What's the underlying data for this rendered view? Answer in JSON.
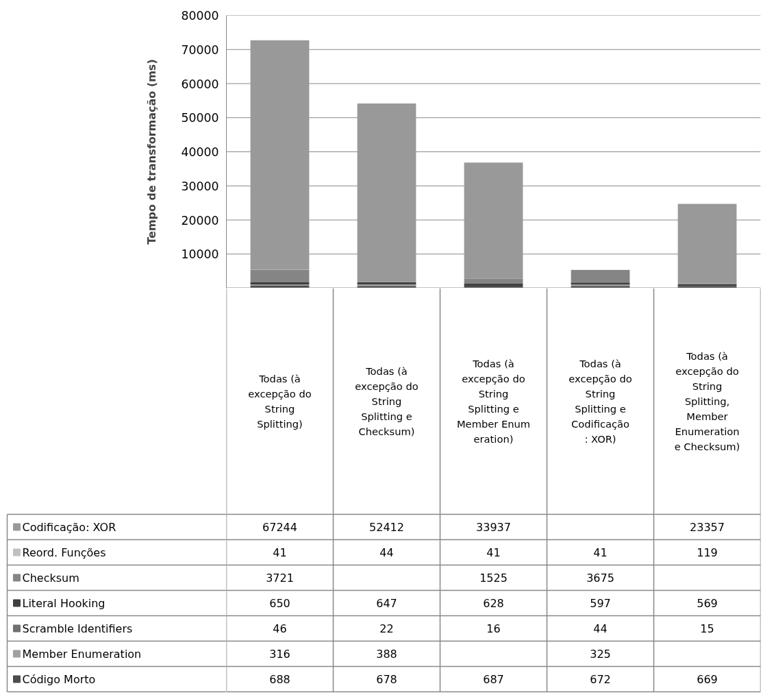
{
  "chart_data": {
    "type": "bar",
    "stacked": true,
    "ylabel": "Tempo de transformação (ms)",
    "categories": [
      "Todas (à excepção do String Splitting)",
      "Todas (à excepção do String Splitting e Checksum)",
      "Todas (à excepção do String Splitting e Member Enumeration)",
      "Todas (à excepção do String Splitting e Codificação: XOR)",
      "Todas (à excepção do String Splitting, Member Enumeration e Checksum)"
    ],
    "series": [
      {
        "name": "Código Morto",
        "color": "#4d4d4d",
        "values": [
          688,
          678,
          687,
          672,
          669
        ]
      },
      {
        "name": "Member Enumeration",
        "color": "#a0a0a0",
        "values": [
          316,
          388,
          null,
          325,
          null
        ]
      },
      {
        "name": "Scramble Identifiers",
        "color": "#707070",
        "values": [
          46,
          22,
          16,
          44,
          15
        ]
      },
      {
        "name": "Literal Hooking",
        "color": "#404040",
        "values": [
          650,
          647,
          628,
          597,
          569
        ]
      },
      {
        "name": "Checksum",
        "color": "#858585",
        "values": [
          3721,
          null,
          1525,
          3675,
          null
        ]
      },
      {
        "name": "Reord. Funções",
        "color": "#c0c0c0",
        "values": [
          41,
          44,
          41,
          41,
          119
        ]
      },
      {
        "name": "Codificação: XOR",
        "color": "#999999",
        "values": [
          67244,
          52412,
          33937,
          null,
          23357
        ]
      }
    ],
    "ylim": [
      0,
      80000
    ],
    "yticks": [
      10000,
      20000,
      30000,
      40000,
      50000,
      60000,
      70000,
      80000
    ],
    "grid": "y",
    "data_labels": true,
    "legend": "bottom left"
  }
}
